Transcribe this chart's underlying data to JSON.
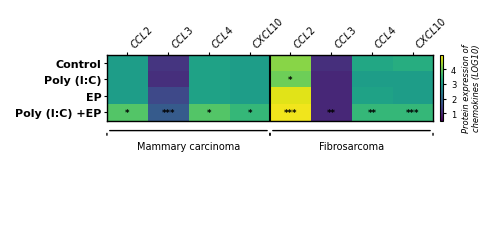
{
  "rows": [
    "Control",
    "Poly (I:C)",
    "EP",
    "Poly (I:C) +EP"
  ],
  "cols": [
    "CCL2",
    "CCL3",
    "CCL4",
    "CXCL10",
    "CCL2",
    "CCL3",
    "CCL4",
    "CXCL10"
  ],
  "group_labels": [
    "Mammary carcinoma",
    "Fibrosarcoma"
  ],
  "values": [
    [
      3.0,
      1.2,
      3.1,
      3.0,
      4.2,
      1.1,
      3.2,
      3.3
    ],
    [
      3.0,
      1.1,
      3.1,
      3.0,
      4.0,
      1.0,
      3.0,
      3.0
    ],
    [
      3.0,
      1.5,
      3.1,
      3.0,
      4.8,
      1.0,
      3.1,
      3.0
    ],
    [
      3.8,
      1.8,
      3.8,
      3.5,
      4.9,
      1.0,
      3.5,
      3.5
    ]
  ],
  "annotations": [
    [
      null,
      null,
      null,
      null,
      null,
      null,
      null,
      null
    ],
    [
      null,
      null,
      null,
      null,
      "*",
      null,
      null,
      null
    ],
    [
      null,
      null,
      null,
      null,
      null,
      null,
      null,
      null
    ],
    [
      "*",
      "***",
      "*",
      "*",
      "***",
      "**",
      "**",
      "***"
    ]
  ],
  "vmin": 0.5,
  "vmax": 5.0,
  "colorbar_ticks": [
    1,
    2,
    3,
    4
  ],
  "colorbar_label": "Protein expression of\nchemokines (LOG10)",
  "divider_col": 4,
  "col_label_fontsize": 7,
  "row_label_fontsize": 8,
  "annotation_fontsize": 6,
  "colormap": "viridis"
}
